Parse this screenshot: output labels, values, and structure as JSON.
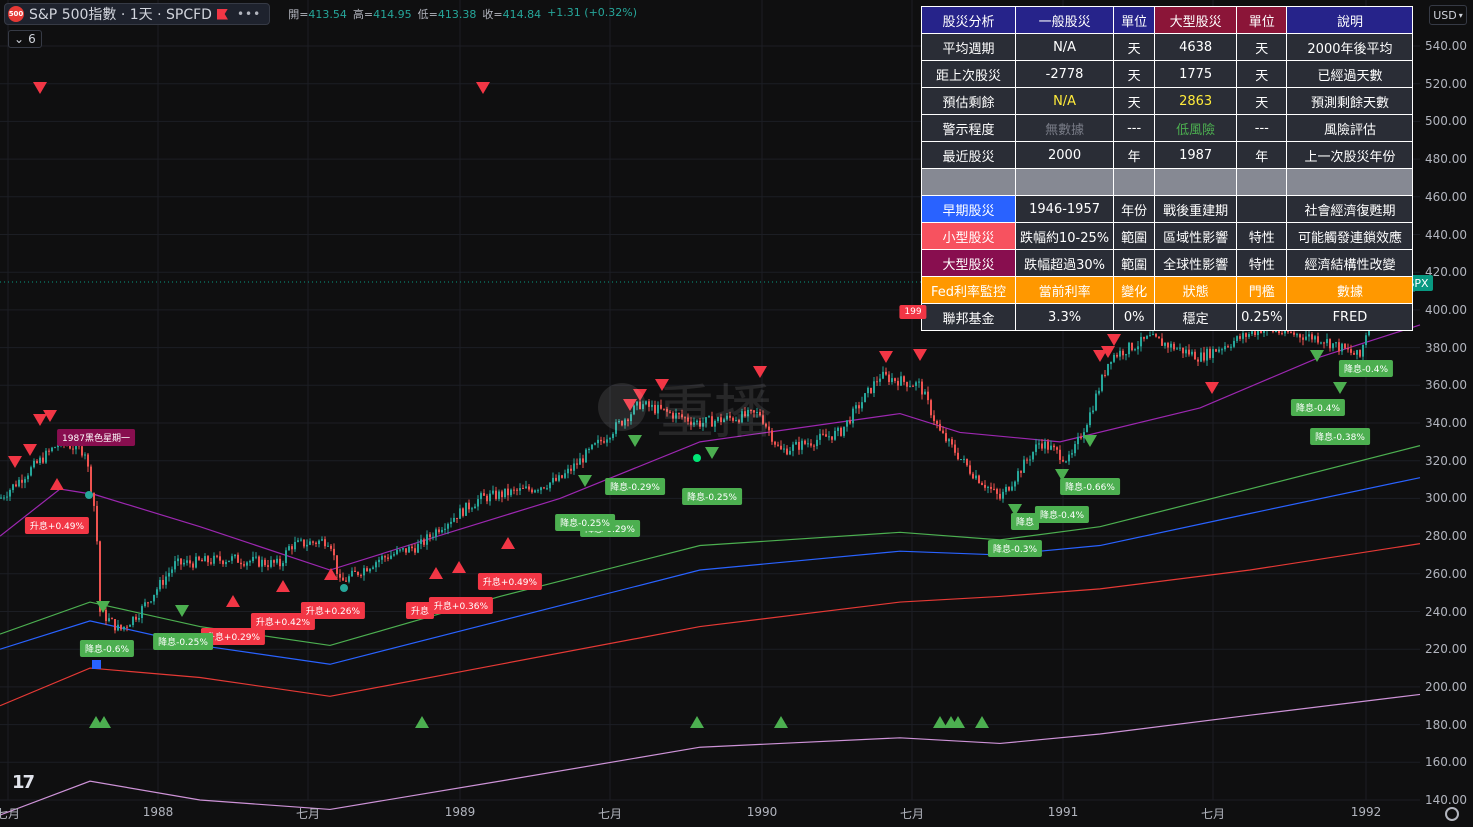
{
  "symbol": {
    "logo_text": "500",
    "title": "S&P 500指數 · 1天 · SPCFD",
    "more_label": "•••"
  },
  "ohlc": {
    "open_label": "開=",
    "open": "413.54",
    "high_label": "高=",
    "high": "414.95",
    "low_label": "低=",
    "low": "413.38",
    "close_label": "收=",
    "close": "414.84",
    "change": "+1.31 (+0.32%)"
  },
  "indicators": {
    "count": "6"
  },
  "currency": {
    "label": "USD"
  },
  "price_tag": "SPX",
  "watermark": "重播",
  "y_axis": {
    "labels": [
      "540.00",
      "520.00",
      "500.00",
      "480.00",
      "460.00",
      "440.00",
      "420.00",
      "400.00",
      "380.00",
      "360.00",
      "340.00",
      "320.00",
      "300.00",
      "280.00",
      "260.00",
      "240.00",
      "220.00",
      "200.00",
      "180.00",
      "160.00",
      "140.00"
    ]
  },
  "x_axis": {
    "labels": [
      {
        "text": "七月"
      },
      {
        "text": "1988"
      },
      {
        "text": "七月"
      },
      {
        "text": "1989"
      },
      {
        "text": "七月"
      },
      {
        "text": "1990"
      },
      {
        "text": "七月"
      },
      {
        "text": "1991"
      },
      {
        "text": "七月"
      },
      {
        "text": "1992"
      }
    ]
  },
  "table": {
    "header": [
      "股災分析",
      "一般股災",
      "單位",
      "大型股災",
      "單位",
      "說明"
    ],
    "rows": [
      [
        "平均週期",
        "N/A",
        "天",
        "4638",
        "天",
        "2000年後平均"
      ],
      [
        "距上次股災",
        "-2778",
        "天",
        "1775",
        "天",
        "已經過天數"
      ],
      [
        "預估剩餘",
        "N/A",
        "天",
        "2863",
        "天",
        "預測剩餘天數"
      ],
      [
        "警示程度",
        "無數據",
        "---",
        "低風險",
        "---",
        "風險評估"
      ],
      [
        "最近股災",
        "2000",
        "年",
        "1987",
        "年",
        "上一次股災年份"
      ],
      [
        "",
        "",
        "",
        "",
        "",
        ""
      ],
      [
        "早期股災",
        "1946-1957",
        "年份",
        "戰後重建期",
        "",
        "社會經濟復甦期"
      ],
      [
        "小型股災",
        "跌幅約10-25%",
        "範圍",
        "區域性影響",
        "特性",
        "可能觸發連鎖效應"
      ],
      [
        "大型股災",
        "跌幅超過30%",
        "範圍",
        "全球性影響",
        "特性",
        "經濟結構性改變"
      ],
      [
        "Fed利率監控",
        "當前利率",
        "變化",
        "狀態",
        "門檻",
        "數據"
      ],
      [
        "聯邦基金",
        "3.3%",
        "0%",
        "穩定",
        "0.25%",
        "FRED"
      ]
    ]
  },
  "signals": {
    "up": [
      {
        "text": "升息+0.49%"
      },
      {
        "text": "升息+0.29%"
      },
      {
        "text": "升息+0.42%"
      },
      {
        "text": "升息+0.26%"
      },
      {
        "text": "升息"
      },
      {
        "text": "升息+0.36%"
      },
      {
        "text": "升息+0.49%"
      }
    ],
    "down": [
      {
        "text": "降息-0.6%"
      },
      {
        "text": "降息-0.25%"
      },
      {
        "text": "降息-0.29%"
      },
      {
        "text": "降息-0.25%"
      },
      {
        "text": "降息-0.29%"
      },
      {
        "text": "降息-0.25%"
      },
      {
        "text": "降息-0.3%"
      },
      {
        "text": "降息"
      },
      {
        "text": "降息-0.4%"
      },
      {
        "text": "降息-0.66%"
      },
      {
        "text": "降息-0.4%"
      },
      {
        "text": "降息-0.38%"
      },
      {
        "text": "降息-0.4%"
      }
    ],
    "crash": {
      "text": "1987黑色星期一"
    },
    "crash_partial": {
      "text": "199"
    }
  },
  "colors": {
    "up": "#26a69a",
    "down": "#ef5350",
    "ma_purple": "#9c27b0",
    "ma_green": "#4caf50",
    "ma_blue": "#2962ff",
    "ma_red": "#e53935",
    "ma_mauve": "#ce93d8"
  }
}
